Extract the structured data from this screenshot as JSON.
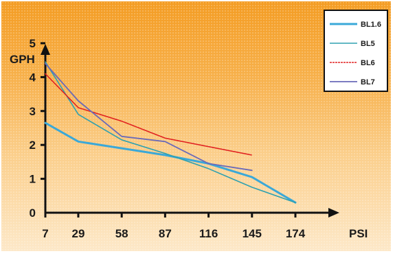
{
  "chart_data": {
    "type": "line",
    "xlabel": "PSI",
    "ylabel": "GPH",
    "x_ticks": [
      7,
      29,
      58,
      87,
      116,
      145,
      174
    ],
    "y_ticks": [
      0,
      1,
      2,
      3,
      4,
      5
    ],
    "xlim": [
      7,
      174
    ],
    "ylim": [
      0,
      5.5
    ],
    "grid": false,
    "legend_position": "top-right",
    "series": [
      {
        "name": "BL1.6",
        "color": "#3aa8d8",
        "x": [
          7,
          29,
          58,
          87,
          116,
          145,
          174
        ],
        "y": [
          2.65,
          2.1,
          1.9,
          1.7,
          1.45,
          1.05,
          0.3
        ]
      },
      {
        "name": "BL5",
        "color": "#2ea0b0",
        "x": [
          7,
          29,
          58,
          87,
          116,
          145,
          174
        ],
        "y": [
          4.45,
          2.9,
          2.15,
          1.75,
          1.3,
          0.75,
          0.3
        ]
      },
      {
        "name": "BL6",
        "color": "#e02020",
        "x": [
          7,
          29,
          58,
          87,
          116,
          145
        ],
        "y": [
          4.1,
          3.1,
          2.7,
          2.2,
          1.95,
          1.7
        ]
      },
      {
        "name": "BL7",
        "color": "#6a6ab8",
        "x": [
          7,
          29,
          58,
          87,
          116,
          145
        ],
        "y": [
          4.4,
          3.3,
          2.25,
          2.1,
          1.45,
          1.25
        ]
      }
    ]
  }
}
